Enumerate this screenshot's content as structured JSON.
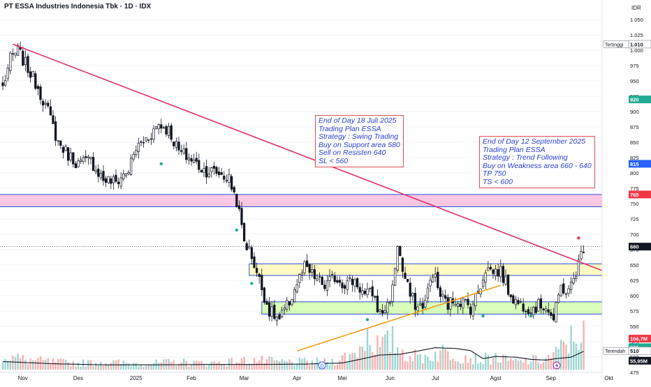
{
  "header": {
    "title": "PT ESSA Industries Indonesia Tbk · 1D · IDX"
  },
  "chart_data": {
    "type": "candlestick",
    "currency": "IDR",
    "ylim": [
      475,
      1065
    ],
    "y_ticks": [
      1050,
      1025,
      1000,
      975,
      950,
      925,
      900,
      875,
      850,
      825,
      800,
      775,
      750,
      725,
      700,
      675,
      650,
      625,
      600,
      575,
      550,
      525,
      500,
      475
    ],
    "x_labels": [
      {
        "label": "Nov",
        "i": 8
      },
      {
        "label": "Des",
        "i": 30
      },
      {
        "label": "2025",
        "i": 53
      },
      {
        "label": "Feb",
        "i": 75
      },
      {
        "label": "Mar",
        "i": 96
      },
      {
        "label": "Apr",
        "i": 117
      },
      {
        "label": "Mei",
        "i": 135
      },
      {
        "label": "Jun",
        "i": 154
      },
      {
        "label": "Jul",
        "i": 172
      },
      {
        "label": "Agst",
        "i": 196
      },
      {
        "label": "Sep",
        "i": 218
      },
      {
        "label": "Okt",
        "i": 241
      }
    ],
    "price_badges": [
      {
        "label": "Tertinggi",
        "value": "1.010",
        "price": 1010,
        "color": "#ffffff",
        "text": "#131722",
        "border": "#9598a1"
      },
      {
        "label": "",
        "value": "920",
        "price": 920,
        "color": "#22ab94",
        "text": "#ffffff"
      },
      {
        "label": "",
        "value": "815",
        "price": 815,
        "color": "#2962ff",
        "text": "#ffffff"
      },
      {
        "label": "",
        "value": "765",
        "price": 765,
        "color": "#f23645",
        "text": "#ffffff"
      },
      {
        "label": "",
        "value": "680",
        "price": 680,
        "color": "#131722",
        "text": "#ffffff"
      },
      {
        "label": "",
        "value": "106,7M",
        "price": 530,
        "color": "#f23645",
        "text": "#ffffff"
      },
      {
        "label": "",
        "value": "525",
        "price": 516,
        "color": "#22ab94",
        "text": "#ffffff"
      },
      {
        "label": "Terendah",
        "value": "510",
        "price": 510,
        "color": "#ffffff",
        "text": "#131722",
        "border": "#9598a1"
      },
      {
        "label": "",
        "value": "55,95M",
        "price": 494,
        "color": "#131722",
        "text": "#ffffff"
      }
    ],
    "anchors": [
      [
        0,
        940
      ],
      [
        3,
        985
      ],
      [
        6,
        1000
      ],
      [
        10,
        970
      ],
      [
        14,
        940
      ],
      [
        18,
        900
      ],
      [
        22,
        850
      ],
      [
        26,
        830
      ],
      [
        30,
        815
      ],
      [
        35,
        820
      ],
      [
        40,
        790
      ],
      [
        45,
        785
      ],
      [
        50,
        805
      ],
      [
        53,
        840
      ],
      [
        58,
        860
      ],
      [
        62,
        880
      ],
      [
        66,
        870
      ],
      [
        70,
        835
      ],
      [
        74,
        825
      ],
      [
        80,
        805
      ],
      [
        86,
        800
      ],
      [
        90,
        790
      ],
      [
        93,
        755
      ],
      [
        96,
        690
      ],
      [
        99,
        665
      ],
      [
        102,
        625
      ],
      [
        106,
        575
      ],
      [
        110,
        560
      ],
      [
        114,
        590
      ],
      [
        117,
        620
      ],
      [
        120,
        645
      ],
      [
        124,
        630
      ],
      [
        128,
        615
      ],
      [
        132,
        630
      ],
      [
        136,
        620
      ],
      [
        140,
        625
      ],
      [
        144,
        600
      ],
      [
        147,
        605
      ],
      [
        150,
        570
      ],
      [
        153,
        585
      ],
      [
        155,
        610
      ],
      [
        157,
        685
      ],
      [
        159,
        640
      ],
      [
        162,
        600
      ],
      [
        165,
        580
      ],
      [
        168,
        590
      ],
      [
        171,
        640
      ],
      [
        174,
        600
      ],
      [
        177,
        585
      ],
      [
        180,
        595
      ],
      [
        183,
        590
      ],
      [
        186,
        580
      ],
      [
        189,
        605
      ],
      [
        192,
        645
      ],
      [
        195,
        640
      ],
      [
        198,
        640
      ],
      [
        201,
        610
      ],
      [
        204,
        590
      ],
      [
        207,
        585
      ],
      [
        210,
        580
      ],
      [
        213,
        583
      ],
      [
        216,
        585
      ],
      [
        219,
        560
      ],
      [
        222,
        615
      ],
      [
        225,
        605
      ],
      [
        228,
        640
      ],
      [
        231,
        680
      ]
    ],
    "volume_anchors": [
      [
        0,
        0.22
      ],
      [
        10,
        0.15
      ],
      [
        20,
        0.12
      ],
      [
        30,
        0.1
      ],
      [
        40,
        0.12
      ],
      [
        50,
        0.1
      ],
      [
        60,
        0.1
      ],
      [
        70,
        0.12
      ],
      [
        80,
        0.1
      ],
      [
        90,
        0.12
      ],
      [
        100,
        0.15
      ],
      [
        110,
        0.12
      ],
      [
        120,
        0.12
      ],
      [
        130,
        0.12
      ],
      [
        140,
        0.25
      ],
      [
        145,
        0.55
      ],
      [
        150,
        0.35
      ],
      [
        155,
        0.45
      ],
      [
        160,
        0.25
      ],
      [
        165,
        0.2
      ],
      [
        170,
        0.22
      ],
      [
        175,
        0.28
      ],
      [
        180,
        0.25
      ],
      [
        185,
        0.2
      ],
      [
        190,
        0.15
      ],
      [
        195,
        0.2
      ],
      [
        200,
        0.15
      ],
      [
        205,
        0.12
      ],
      [
        210,
        0.15
      ],
      [
        215,
        0.15
      ],
      [
        220,
        0.25
      ],
      [
        225,
        0.45
      ],
      [
        231,
        0.6
      ]
    ],
    "volume_ma": [
      [
        0,
        0.22
      ],
      [
        20,
        0.16
      ],
      [
        40,
        0.13
      ],
      [
        60,
        0.13
      ],
      [
        80,
        0.14
      ],
      [
        100,
        0.14
      ],
      [
        120,
        0.15
      ],
      [
        135,
        0.18
      ],
      [
        142,
        0.28
      ],
      [
        150,
        0.4
      ],
      [
        158,
        0.42
      ],
      [
        166,
        0.52
      ],
      [
        172,
        0.6
      ],
      [
        180,
        0.58
      ],
      [
        186,
        0.52
      ],
      [
        191,
        0.3
      ],
      [
        196,
        0.36
      ],
      [
        204,
        0.34
      ],
      [
        210,
        0.28
      ],
      [
        216,
        0.26
      ],
      [
        220,
        0.3
      ],
      [
        226,
        0.34
      ],
      [
        231,
        0.5
      ]
    ],
    "zones": [
      {
        "name": "resistance-zone",
        "i0": -5,
        "i1": 245,
        "p0": 765,
        "p1": 745,
        "fill": "rgba(242,54,150,0.28)",
        "stroke": "#2b4fd8"
      },
      {
        "name": "upper-consolidation-zone",
        "i0": 98,
        "i1": 242,
        "p0": 652,
        "p1": 633,
        "fill": "rgba(255,235,59,0.30)",
        "stroke": "#2b4fd8"
      },
      {
        "name": "support-zone",
        "i0": 103,
        "i1": 242,
        "p0": 590,
        "p1": 570,
        "fill": "rgba(118,255,3,0.28)",
        "stroke": "#2b4fd8"
      }
    ],
    "lines": [
      {
        "name": "downtrend-line",
        "i0": 4,
        "p0": 1010,
        "i1": 239,
        "p1": 640,
        "color": "#e0306b",
        "width": 1.6
      },
      {
        "name": "uptrend-line",
        "i0": 117,
        "p0": 510,
        "i1": 198,
        "p1": 617,
        "color": "#f29d18",
        "width": 1.6
      }
    ],
    "markers": [
      {
        "i": 63,
        "p": 815,
        "color": "#22ab94"
      },
      {
        "i": 93,
        "p": 707,
        "color": "#22ab94"
      },
      {
        "i": 99,
        "p": 620,
        "color": "#22ab94"
      },
      {
        "i": 145,
        "p": 561,
        "color": "#22ab94"
      },
      {
        "i": 191,
        "p": 567,
        "color": "#22ab94"
      },
      {
        "i": 210,
        "p": 567,
        "color": "#22ab94"
      },
      {
        "i": 229,
        "p": 694,
        "color": "#f23645"
      }
    ],
    "notes": [
      {
        "name": "plan-note-july",
        "x": 451,
        "y": 165,
        "lines": [
          "End of Day 18 Juli 2025",
          "Trading Plan ESSA",
          "Strategy : Swing Trading",
          "Buy on Support area 580",
          "Sell on Resisten 640",
          "SL < 560"
        ]
      },
      {
        "name": "plan-note-september",
        "x": 686,
        "y": 195,
        "lines": [
          "End of Day 12 September 2025",
          "Trading Plan ESSA",
          "Strategy : Trend Following",
          "Buy on Weakness area 660 - 640",
          "TP 750",
          "TS < 600"
        ]
      }
    ]
  }
}
